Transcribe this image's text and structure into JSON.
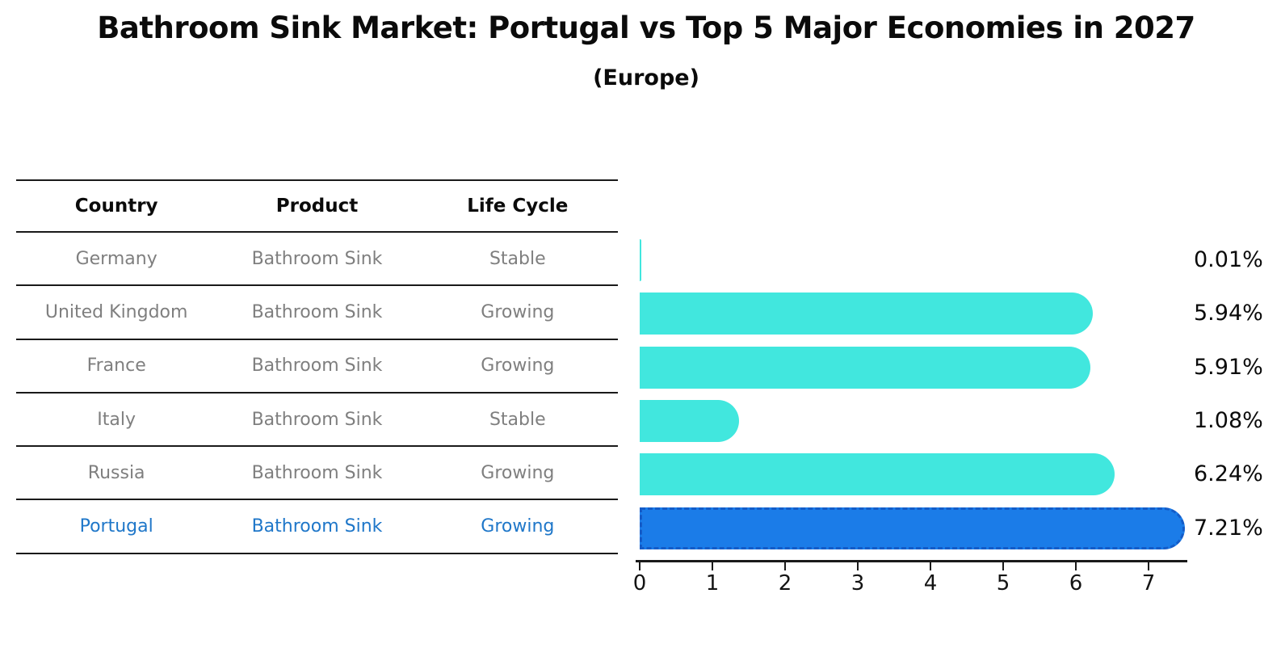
{
  "header": {
    "title": "Bathroom Sink Market: Portugal vs Top 5 Major Economies in 2027",
    "subtitle": "(Europe)"
  },
  "table": {
    "columns": [
      "Country",
      "Product",
      "Life Cycle"
    ],
    "rows": [
      {
        "country": "Germany",
        "product": "Bathroom Sink",
        "life_cycle": "Stable",
        "highlighted": false
      },
      {
        "country": "United Kingdom",
        "product": "Bathroom Sink",
        "life_cycle": "Growing",
        "highlighted": false
      },
      {
        "country": "France",
        "product": "Bathroom Sink",
        "life_cycle": "Growing",
        "highlighted": false
      },
      {
        "country": "Italy",
        "product": "Bathroom Sink",
        "life_cycle": "Stable",
        "highlighted": false
      },
      {
        "country": "Russia",
        "product": "Bathroom Sink",
        "life_cycle": "Growing",
        "highlighted": false
      },
      {
        "country": "Portugal",
        "product": "Bathroom Sink",
        "life_cycle": "Growing",
        "highlighted": true
      }
    ]
  },
  "chart_data": {
    "type": "bar",
    "orientation": "horizontal",
    "title": "Bathroom Sink Market: Portugal vs Top 5 Major Economies in 2027",
    "subtitle": "(Europe)",
    "categories": [
      "Germany",
      "United Kingdom",
      "France",
      "Italy",
      "Russia",
      "Portugal"
    ],
    "values": [
      0.01,
      5.94,
      5.91,
      1.08,
      6.24,
      7.21
    ],
    "value_labels": [
      "0.01%",
      "5.94%",
      "5.91%",
      "1.08%",
      "6.24%",
      "7.21%"
    ],
    "x_ticks": [
      0,
      1,
      2,
      3,
      4,
      5,
      6,
      7
    ],
    "xlim": [
      0,
      7.5
    ],
    "grid": false,
    "legend": "none",
    "highlight_index": 5,
    "colors": {
      "bar_color": "#41E7DE",
      "highlight_color": "#1B7CE8",
      "highlight_border_color": "#145CC8",
      "highlight_text_color": "#1F77C9",
      "muted_text_color": "#7F7F7F",
      "text_color": "#0B0B0B"
    }
  }
}
